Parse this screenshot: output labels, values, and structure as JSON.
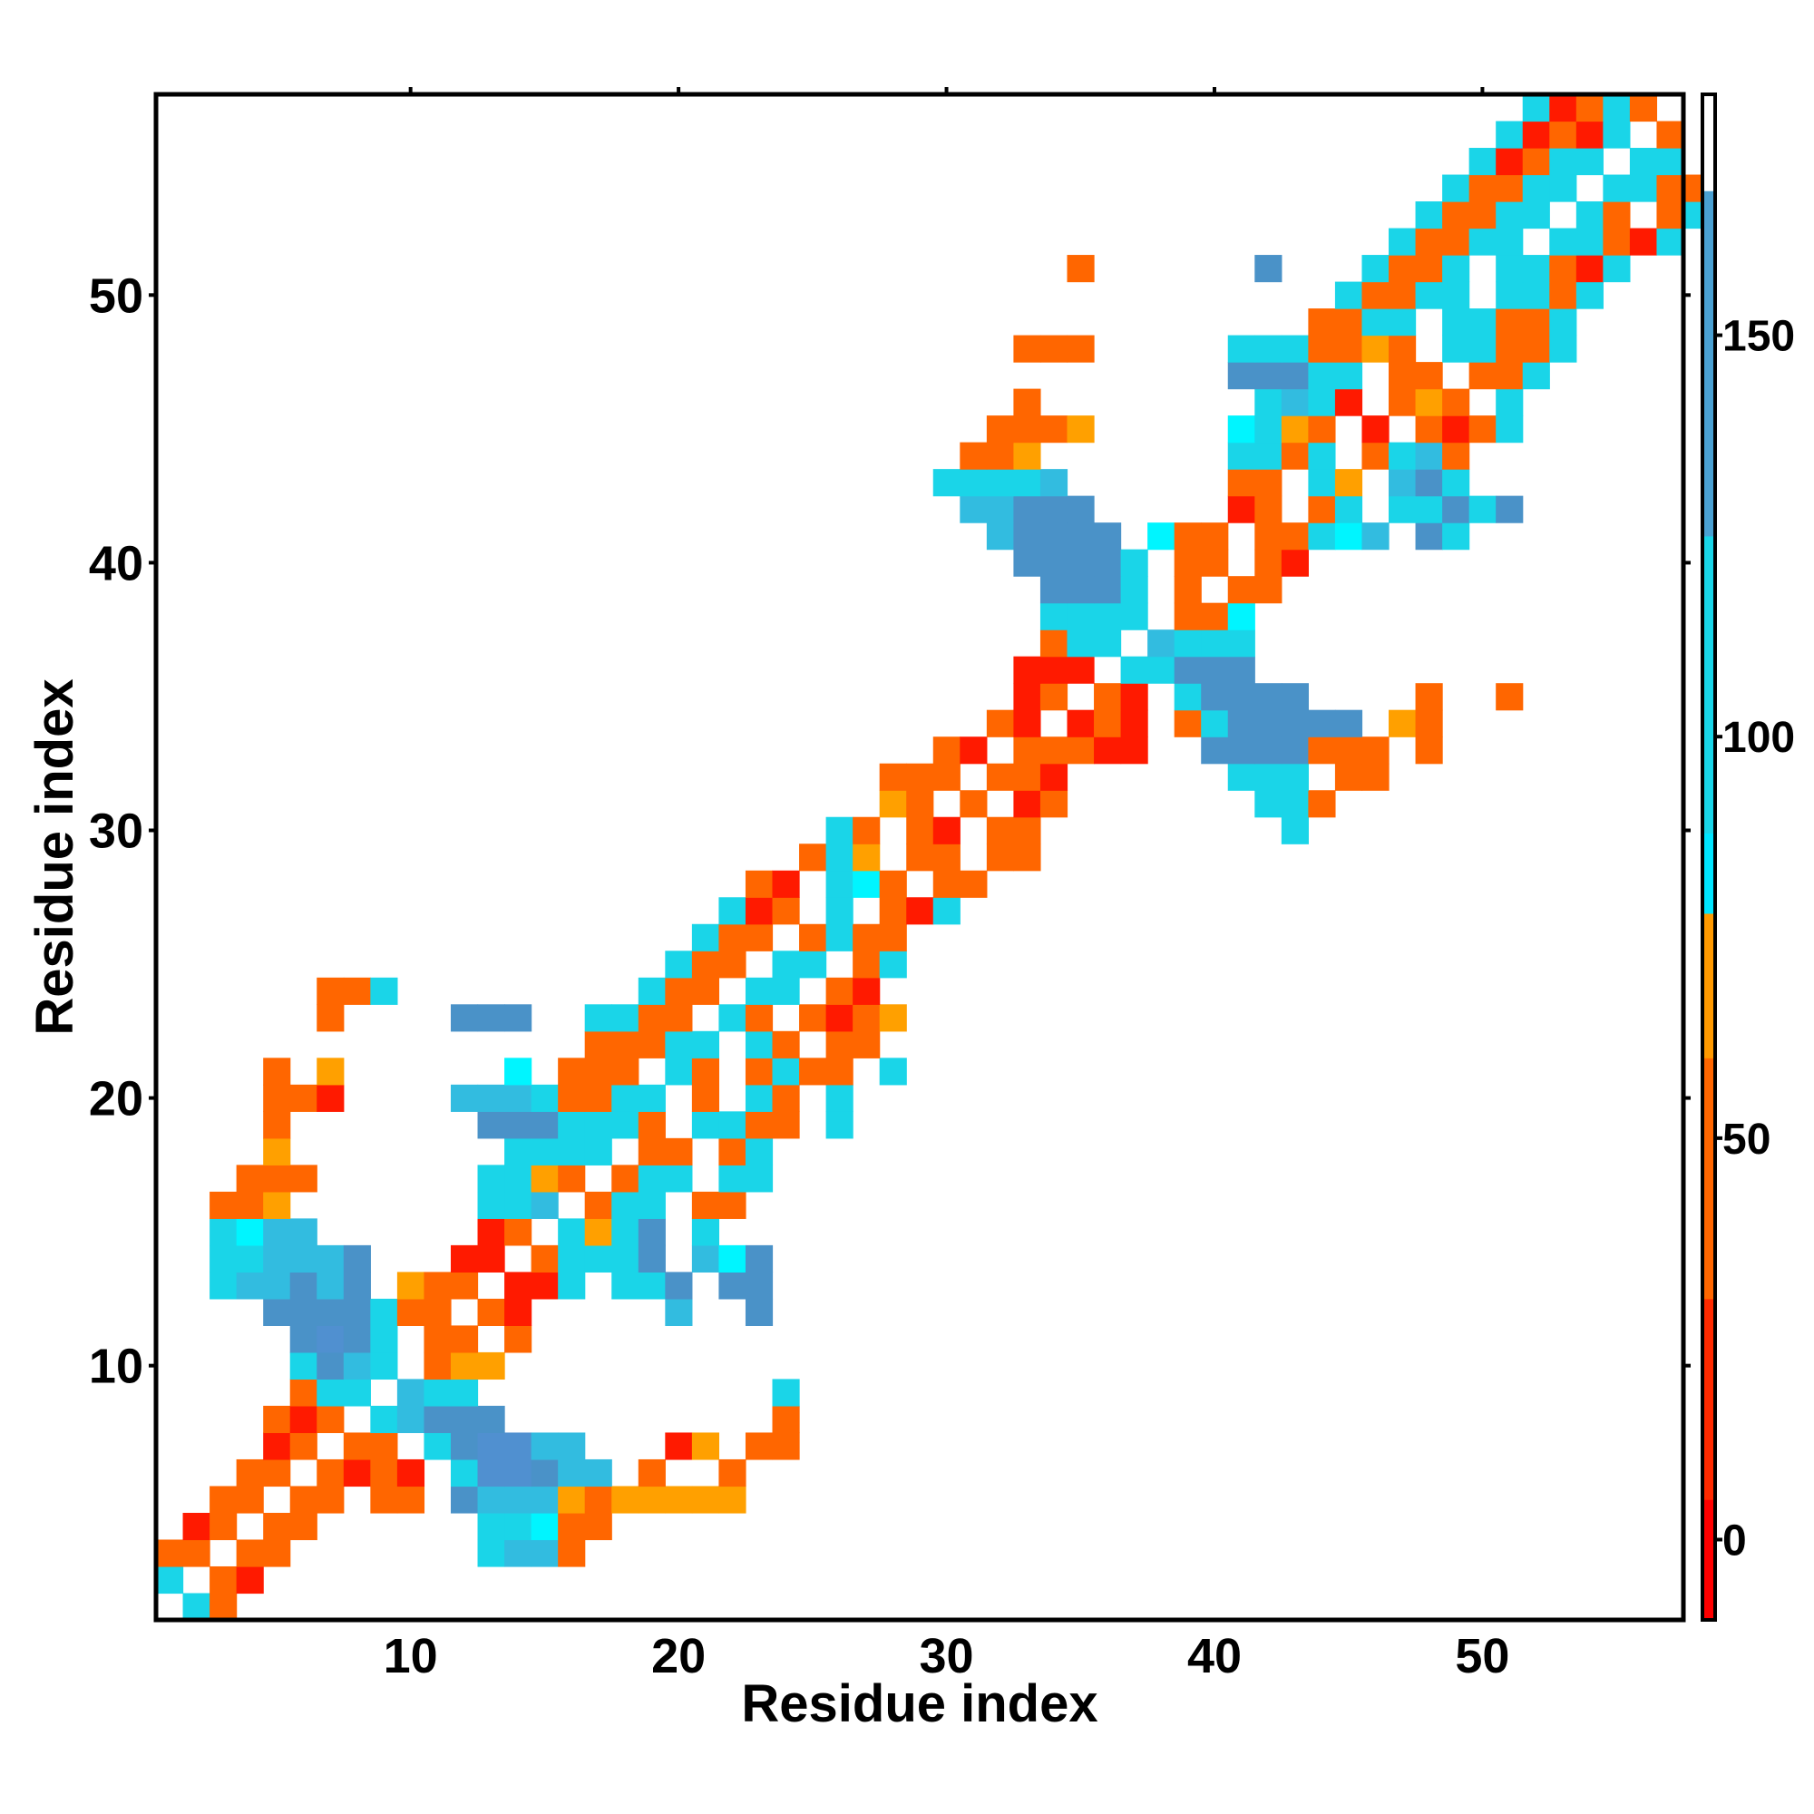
{
  "chart_data": {
    "type": "heatmap",
    "title": "",
    "xlabel": "Residue index",
    "ylabel": "Residue index",
    "xlim": [
      0.5,
      57.5
    ],
    "ylim": [
      0.5,
      57.5
    ],
    "x_ticks": [
      10,
      20,
      30,
      40,
      50
    ],
    "y_ticks": [
      10,
      20,
      30,
      40,
      50
    ],
    "colorbar": {
      "range": [
        -10,
        180
      ],
      "ticks": [
        0,
        50,
        100,
        150
      ],
      "bands": [
        {
          "from": -10,
          "to": 5,
          "color": "#ff0000"
        },
        {
          "from": 5,
          "to": 30,
          "color": "#ff2a00"
        },
        {
          "from": 30,
          "to": 60,
          "color": "#ff6600"
        },
        {
          "from": 60,
          "to": 78,
          "color": "#ff9900"
        },
        {
          "from": 78,
          "to": 88,
          "color": "#00e5ff"
        },
        {
          "from": 88,
          "to": 125,
          "color": "#19d5e8"
        },
        {
          "from": 125,
          "to": 168,
          "color": "#4aa0d2"
        },
        {
          "from": 168,
          "to": 180,
          "color": "#ffffff"
        }
      ]
    },
    "palette": {
      "R": "#ff1a00",
      "O": "#ff6600",
      "Y": "#ffa000",
      "C": "#1ad5e8",
      "A": "#00f5ff",
      "D": "#32bce0",
      "B": "#4a92c8",
      "P": "#5090d0"
    },
    "cells_by_row_key": "row y=1..57 from bottom; each entry is [x_start, codes], '.' = empty",
    "rows": [
      {
        "y": 1,
        "cells": [
          [
            2,
            "CO"
          ]
        ]
      },
      {
        "y": 2,
        "cells": [
          [
            1,
            "C.OR"
          ]
        ]
      },
      {
        "y": 3,
        "cells": [
          [
            1,
            "OO.OO"
          ],
          [
            13,
            "CDDO"
          ]
        ]
      },
      {
        "y": 4,
        "cells": [
          [
            2,
            "RO.OO"
          ],
          [
            13,
            "CCAOO"
          ]
        ]
      },
      {
        "y": 5,
        "cells": [
          [
            3,
            "OO.OO.OO"
          ],
          [
            12,
            "BDDDYOYYYYY"
          ]
        ]
      },
      {
        "y": 6,
        "cells": [
          [
            4,
            "OO.OROR.CPPBDD.O..O"
          ]
        ]
      },
      {
        "y": 7,
        "cells": [
          [
            5,
            "RO.OO.CBPPDD"
          ],
          [
            20,
            "RY.OO"
          ]
        ]
      },
      {
        "y": 8,
        "cells": [
          [
            5,
            "ORO.CDBBB"
          ],
          [
            24,
            "O"
          ]
        ]
      },
      {
        "y": 9,
        "cells": [
          [
            6,
            "OCC.DCC"
          ],
          [
            24,
            "C"
          ]
        ]
      },
      {
        "y": 10,
        "cells": [
          [
            6,
            "CBDC.OYY"
          ]
        ]
      },
      {
        "y": 11,
        "cells": [
          [
            6,
            "BPBC.OO.O"
          ]
        ]
      },
      {
        "y": 12,
        "cells": [
          [
            5,
            "BBBBCOO.OR"
          ],
          [
            20,
            "D"
          ],
          [
            23,
            "B"
          ]
        ]
      },
      {
        "y": 13,
        "cells": [
          [
            3,
            "CDDBDB.YOO.RRC.CCB.B"
          ],
          [
            23,
            "B"
          ]
        ]
      },
      {
        "y": 14,
        "cells": [
          [
            3,
            "CCDDDB"
          ],
          [
            12,
            "RR.OCCCB.DA"
          ],
          [
            23,
            "B"
          ]
        ]
      },
      {
        "y": 15,
        "cells": [
          [
            3,
            "CADD"
          ],
          [
            13,
            "RO.CYCB.C"
          ]
        ]
      },
      {
        "y": 16,
        "cells": [
          [
            3,
            "OOY"
          ],
          [
            13,
            "CCD.OCC.OO"
          ]
        ]
      },
      {
        "y": 17,
        "cells": [
          [
            4,
            "OOO"
          ],
          [
            13,
            "CCYO.OCC.CC"
          ]
        ]
      },
      {
        "y": 18,
        "cells": [
          [
            5,
            "Y"
          ],
          [
            14,
            "CCCC.OO.OC"
          ]
        ]
      },
      {
        "y": 19,
        "cells": [
          [
            5,
            "O"
          ],
          [
            13,
            "BBBCCCO.CCOO.C"
          ]
        ]
      },
      {
        "y": 20,
        "cells": [
          [
            5,
            "OOR"
          ],
          [
            12,
            "DDDCOOCC.O.CO.C"
          ]
        ]
      },
      {
        "y": 21,
        "cells": [
          [
            5,
            "O.Y"
          ],
          [
            14,
            "A.OOO.CO.OCOO.C"
          ]
        ]
      },
      {
        "y": 22,
        "cells": [
          [
            17,
            "OOOCC.CO.OO"
          ]
        ]
      },
      {
        "y": 23,
        "cells": [
          [
            7,
            "O"
          ],
          [
            12,
            "BBB"
          ],
          [
            17,
            "CCOO.CO.OROY"
          ]
        ]
      },
      {
        "y": 24,
        "cells": [
          [
            7,
            "OOC"
          ],
          [
            19,
            "COO.CC.OR"
          ]
        ]
      },
      {
        "y": 25,
        "cells": [
          [
            20,
            "COO.CC.OC"
          ]
        ]
      },
      {
        "y": 26,
        "cells": [
          [
            21,
            "COO.OCOO"
          ]
        ]
      },
      {
        "y": 27,
        "cells": [
          [
            22,
            "CRO.C.ORC"
          ]
        ]
      },
      {
        "y": 28,
        "cells": [
          [
            23,
            "OR.CAO.OO"
          ]
        ]
      },
      {
        "y": 29,
        "cells": [
          [
            25,
            "OCY.OO.OO"
          ]
        ]
      },
      {
        "y": 30,
        "cells": [
          [
            26,
            "CO.OR.OO"
          ],
          [
            43,
            "C"
          ]
        ]
      },
      {
        "y": 31,
        "cells": [
          [
            28,
            "YO.O.RO"
          ],
          [
            42,
            "CCO"
          ]
        ]
      },
      {
        "y": 32,
        "cells": [
          [
            28,
            "OOO.OOR"
          ],
          [
            41,
            "CCC.OO"
          ]
        ]
      },
      {
        "y": 33,
        "cells": [
          [
            30,
            "OR.OOORR"
          ],
          [
            40,
            "BBBBOOO"
          ],
          [
            48,
            "O"
          ]
        ]
      },
      {
        "y": 34,
        "cells": [
          [
            32,
            "OR.ROR.OCBBBBB.Y"
          ],
          [
            48,
            "O"
          ]
        ]
      },
      {
        "y": 35,
        "cells": [
          [
            33,
            "RO.OR.CBBBB"
          ],
          [
            48,
            "O"
          ],
          [
            51,
            "O"
          ]
        ]
      },
      {
        "y": 36,
        "cells": [
          [
            33,
            "RRR.CCBBB"
          ]
        ]
      },
      {
        "y": 37,
        "cells": [
          [
            34,
            "OCC.DCCC"
          ]
        ]
      },
      {
        "y": 38,
        "cells": [
          [
            34,
            "CCCC.OOA"
          ]
        ]
      },
      {
        "y": 39,
        "cells": [
          [
            34,
            "BBBC.O.OO"
          ]
        ]
      },
      {
        "y": 40,
        "cells": [
          [
            33,
            "BBBBC.OO.OR"
          ]
        ]
      },
      {
        "y": 41,
        "cells": [
          [
            32,
            "DBBBB.AOO.OOCAD.BC"
          ]
        ]
      },
      {
        "y": 42,
        "cells": [
          [
            31,
            "DDBBB"
          ],
          [
            41,
            "RO.OC.CCBC"
          ],
          [
            51,
            "B"
          ]
        ]
      },
      {
        "y": 43,
        "cells": [
          [
            30,
            "CCCCD"
          ],
          [
            41,
            "OO.CY.DBC"
          ]
        ]
      },
      {
        "y": 44,
        "cells": [
          [
            31,
            "OOY"
          ],
          [
            41,
            "CCOC.OCDO"
          ]
        ]
      },
      {
        "y": 45,
        "cells": [
          [
            32,
            "OOOY"
          ],
          [
            41,
            "ACYO.R.OROC"
          ]
        ]
      },
      {
        "y": 46,
        "cells": [
          [
            33,
            "O"
          ],
          [
            42,
            "CDCR.OYO.C"
          ]
        ]
      },
      {
        "y": 47,
        "cells": [
          [
            41,
            "BBBCC.OO.OOC"
          ]
        ]
      },
      {
        "y": 48,
        "cells": [
          [
            33,
            "OOO"
          ],
          [
            41,
            "CCCOOYO.CCOOC"
          ]
        ]
      },
      {
        "y": 49,
        "cells": [
          [
            44,
            "OOCC.CCOOC"
          ]
        ]
      },
      {
        "y": 50,
        "cells": [
          [
            45,
            "COOCC.CCOC"
          ]
        ]
      },
      {
        "y": 51,
        "cells": [
          [
            35,
            "O"
          ],
          [
            42,
            "B"
          ],
          [
            46,
            "COOC.CCORC"
          ]
        ]
      },
      {
        "y": 52,
        "cells": [
          [
            47,
            "COOCC.CCORC"
          ]
        ]
      },
      {
        "y": 53,
        "cells": [
          [
            48,
            "COOCC.CO.OC"
          ]
        ]
      },
      {
        "y": 54,
        "cells": [
          [
            49,
            "COOCC.CCOO"
          ]
        ]
      },
      {
        "y": 55,
        "cells": [
          [
            50,
            "CROCC.CC"
          ]
        ]
      },
      {
        "y": 56,
        "cells": [
          [
            51,
            "CRORC.O"
          ]
        ]
      },
      {
        "y": 57,
        "cells": [
          [
            52,
            "CROCO"
          ]
        ]
      }
    ]
  }
}
